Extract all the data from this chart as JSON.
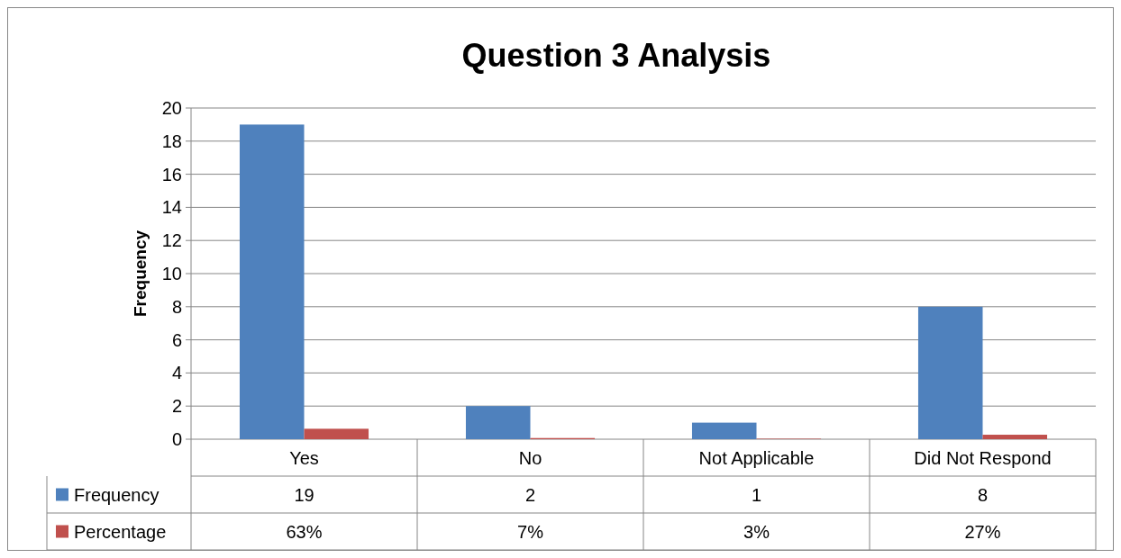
{
  "chart_data": {
    "type": "bar",
    "title": "Question 3 Analysis",
    "ylabel": "Frequency",
    "categories": [
      "Yes",
      "No",
      "Not Applicable",
      "Did Not Respond"
    ],
    "series": [
      {
        "name": "Frequency",
        "color": "#4f81bd",
        "values": [
          19,
          2,
          1,
          8
        ],
        "value_labels": [
          "19",
          "2",
          "1",
          "8"
        ]
      },
      {
        "name": "Percentage",
        "color": "#c0504d",
        "values": [
          0.63,
          0.07,
          0.03,
          0.27
        ],
        "value_labels": [
          "63%",
          "7%",
          "3%",
          "27%"
        ]
      }
    ],
    "ylim": [
      0,
      20
    ],
    "yticks": [
      0,
      2,
      4,
      6,
      8,
      10,
      12,
      14,
      16,
      18,
      20
    ],
    "grid": "y",
    "legend": "bottom"
  }
}
